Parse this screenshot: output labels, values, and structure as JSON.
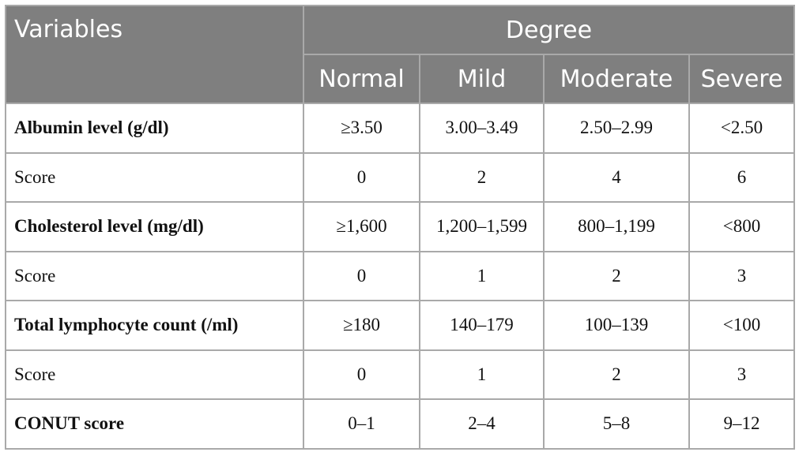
{
  "table": {
    "header": {
      "variables": "Variables",
      "degree": "Degree"
    },
    "subheader": [
      "Normal",
      "Mild",
      "Moderate",
      "Severe"
    ],
    "rows": [
      [
        "Albumin level (g/dl)",
        "≥3.50",
        "3.00–3.49",
        "2.50–2.99",
        "<2.50"
      ],
      [
        "Score",
        "0",
        "2",
        "4",
        "6"
      ],
      [
        "Cholesterol level (mg/dl)",
        "≥1,600",
        "1,200–1,599",
        "800–1,199",
        "<800"
      ],
      [
        "Score",
        "0",
        "1",
        "2",
        "3"
      ],
      [
        "Total lymphocyte count (/ml)",
        "≥180",
        "140–179",
        "100–139",
        "<100"
      ],
      [
        "Score",
        "0",
        "1",
        "2",
        "3"
      ],
      [
        "CONUT score",
        "0–1",
        "2–4",
        "5–8",
        "9–12"
      ]
    ]
  }
}
